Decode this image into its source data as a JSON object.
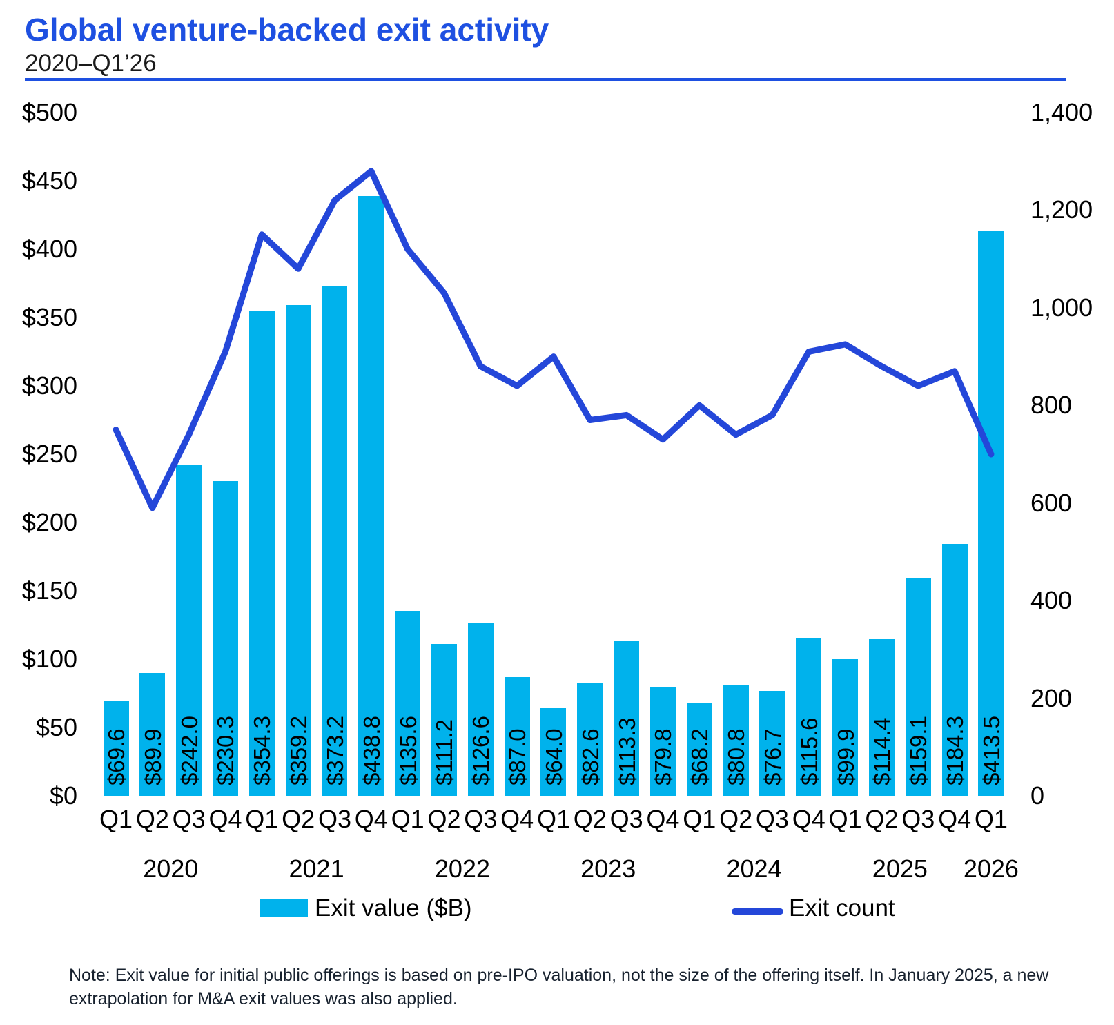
{
  "page": {
    "title": "Global venture-backed exit activity",
    "subtitle": "2020–Q1’26",
    "note": "Note: Exit value for initial public offerings is based on pre-IPO valuation, not the size of the offering itself. In January 2025, a new extrapolation for M&A exit values was also applied."
  },
  "colors": {
    "title_blue": "#1E50E1",
    "bar_cyan": "#00B2EC",
    "line_blue": "#2447D9"
  },
  "legend": {
    "bar_label": "Exit value ($B)",
    "line_label": "Exit count"
  },
  "chart_data": {
    "type": "bar",
    "subtype": "combo-bar-line-dual-axis",
    "title": "Global venture-backed exit activity",
    "subtitle": "2020–Q1'26",
    "categories": [
      "Q1",
      "Q2",
      "Q3",
      "Q4",
      "Q1",
      "Q2",
      "Q3",
      "Q4",
      "Q1",
      "Q2",
      "Q3",
      "Q4",
      "Q1",
      "Q2",
      "Q3",
      "Q4",
      "Q1",
      "Q2",
      "Q3",
      "Q4",
      "Q1",
      "Q2",
      "Q3",
      "Q4",
      "Q1"
    ],
    "year_groups": [
      {
        "label": "2020",
        "quarters": 4
      },
      {
        "label": "2021",
        "quarters": 4
      },
      {
        "label": "2022",
        "quarters": 4
      },
      {
        "label": "2023",
        "quarters": 4
      },
      {
        "label": "2024",
        "quarters": 4
      },
      {
        "label": "2025",
        "quarters": 4
      },
      {
        "label": "2026",
        "quarters": 1
      }
    ],
    "series": [
      {
        "name": "Exit value ($B)",
        "type": "bar",
        "axis": "left",
        "values": [
          69.6,
          89.9,
          242.0,
          230.3,
          354.3,
          359.2,
          373.2,
          438.8,
          135.6,
          111.2,
          126.6,
          87.0,
          64.0,
          82.6,
          113.3,
          79.8,
          68.2,
          80.8,
          76.7,
          115.6,
          99.9,
          114.4,
          159.1,
          184.3,
          413.5
        ],
        "data_labels": [
          "$69.6",
          "$89.9",
          "$242.0",
          "$230.3",
          "$354.3",
          "$359.2",
          "$373.2",
          "$438.8",
          "$135.6",
          "$111.2",
          "$126.6",
          "$87.0",
          "$64.0",
          "$82.6",
          "$113.3",
          "$79.8",
          "$68.2",
          "$80.8",
          "$76.7",
          "$115.6",
          "$99.9",
          "$114.4",
          "$159.1",
          "$184.3",
          "$413.5"
        ]
      },
      {
        "name": "Exit count",
        "type": "line",
        "axis": "right",
        "values_estimated_from_plot": [
          750,
          590,
          740,
          910,
          1150,
          1080,
          1220,
          1280,
          1120,
          1030,
          880,
          840,
          900,
          770,
          780,
          730,
          800,
          740,
          780,
          910,
          925,
          880,
          840,
          870,
          700
        ]
      }
    ],
    "left_axis": {
      "ticks": [
        "$500",
        "$450",
        "$400",
        "$350",
        "$300",
        "$250",
        "$200",
        "$150",
        "$100",
        "$50",
        "$0"
      ],
      "min": 0,
      "max": 500
    },
    "right_axis": {
      "ticks": [
        "1,400",
        "1,200",
        "1,000",
        "800",
        "600",
        "400",
        "200",
        "0"
      ],
      "min": 0,
      "max": 1400
    },
    "grid": false,
    "legend_position": "bottom"
  }
}
